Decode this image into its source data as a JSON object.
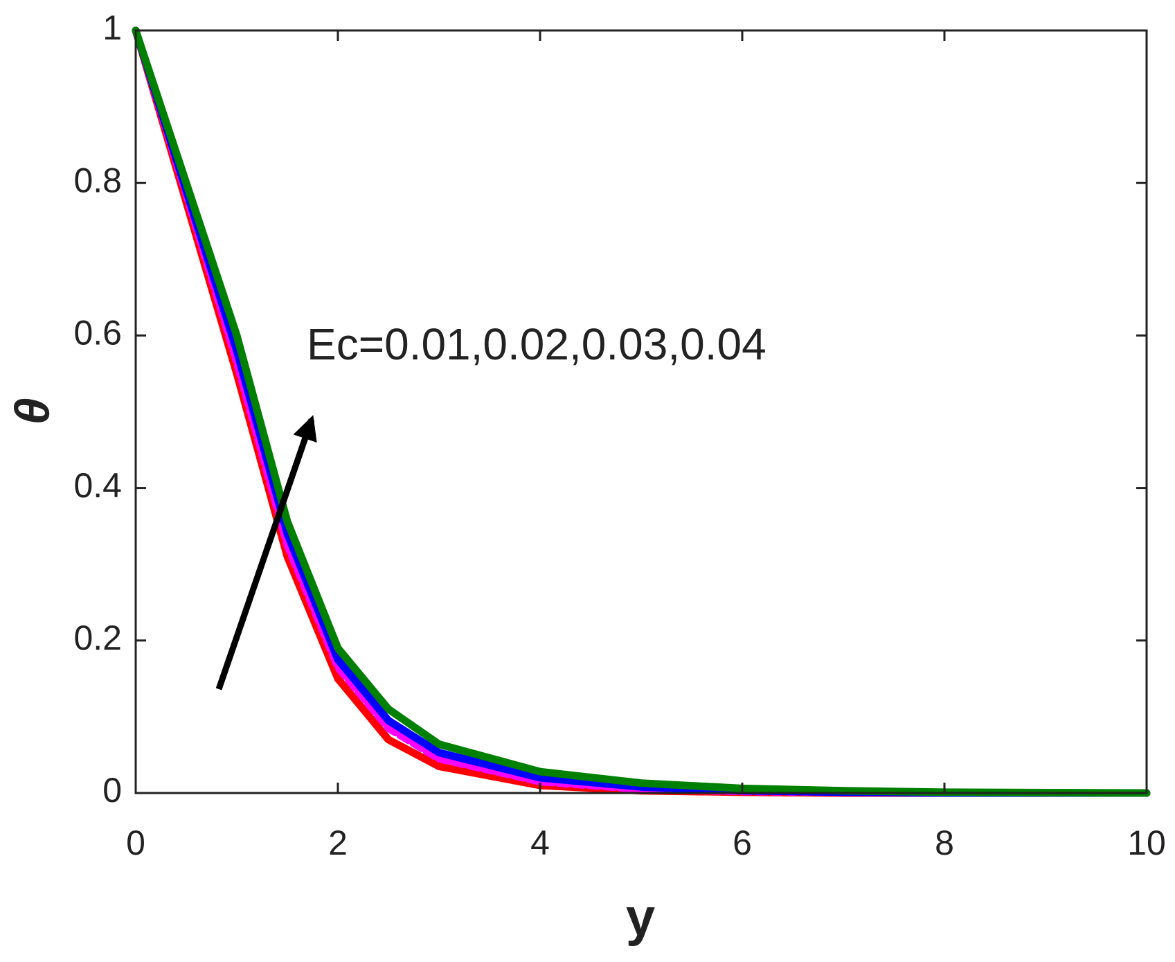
{
  "chart_data": {
    "type": "line",
    "x_label": "y",
    "y_label": "θ",
    "annotation": "Ec=0.01,0.02,0.03,0.04",
    "x": [
      0,
      0.5,
      1,
      1.5,
      2,
      2.5,
      3,
      4,
      5,
      6,
      7,
      8,
      10
    ],
    "series": [
      {
        "color": "#ff0000",
        "dash": "solid",
        "values": [
          1,
          0.775,
          0.55,
          0.31,
          0.15,
          0.07,
          0.035,
          0.01,
          0.003,
          0.001,
          0,
          0,
          0
        ]
      },
      {
        "color": "#ff00ff",
        "dash": "dashed",
        "values": [
          1,
          0.785,
          0.565,
          0.325,
          0.165,
          0.085,
          0.045,
          0.015,
          0.005,
          0.002,
          0.001,
          0,
          0
        ]
      },
      {
        "color": "#0000ff",
        "dash": "solid",
        "values": [
          1,
          0.79,
          0.58,
          0.34,
          0.175,
          0.095,
          0.053,
          0.02,
          0.008,
          0.003,
          0.001,
          0,
          0
        ]
      },
      {
        "color": "#008000",
        "dash": "solid",
        "values": [
          1,
          0.8,
          0.6,
          0.356,
          0.19,
          0.11,
          0.064,
          0.028,
          0.013,
          0.006,
          0.003,
          0.001,
          0
        ]
      }
    ],
    "xlim": [
      0,
      10
    ],
    "xticks": [
      0,
      2,
      4,
      6,
      8,
      10
    ],
    "ylim": [
      0,
      1
    ],
    "yticks": [
      0,
      0.2,
      0.4,
      0.6,
      0.8,
      1
    ],
    "grid": false
  }
}
